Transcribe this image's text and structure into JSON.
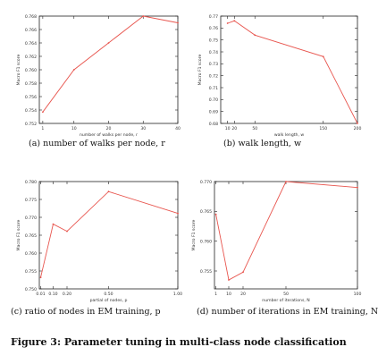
{
  "figure": {
    "caption": "Figure 3: Parameter tuning in multi-class node classification"
  },
  "colors": {
    "line": "#e8554e",
    "axis": "#222222",
    "text": "#333333"
  },
  "chart_data": [
    {
      "type": "line",
      "caption": "(a) number of walks per node, r",
      "xlabel": "number of walks per node, r",
      "ylabel": "Macro F1 score",
      "xlim": [
        0,
        40
      ],
      "ylim": [
        0.752,
        0.768
      ],
      "xticks": [
        1,
        10,
        20,
        30,
        40
      ],
      "yticks": [
        0.752,
        0.754,
        0.756,
        0.758,
        0.76,
        0.762,
        0.764,
        0.766,
        0.768
      ],
      "x": [
        1,
        10,
        20,
        30,
        40
      ],
      "values": [
        0.7537,
        0.76,
        0.764,
        0.768,
        0.767
      ]
    },
    {
      "type": "line",
      "caption": "(b) walk length, w",
      "xlabel": "walk length, w",
      "ylabel": "Macro F1 score",
      "xlim": [
        0,
        200
      ],
      "ylim": [
        0.68,
        0.77
      ],
      "xticks": [
        10,
        20,
        50,
        150,
        200
      ],
      "yticks": [
        0.68,
        0.69,
        0.7,
        0.71,
        0.72,
        0.73,
        0.74,
        0.75,
        0.76,
        0.77
      ],
      "x": [
        10,
        20,
        50,
        150,
        200
      ],
      "values": [
        0.764,
        0.766,
        0.754,
        0.736,
        0.68
      ]
    },
    {
      "type": "line",
      "caption": "(c) ratio of nodes in EM training, p",
      "xlabel": "partial of nodes, p",
      "ylabel": "Macro F1 score",
      "xlim": [
        0,
        1
      ],
      "ylim": [
        0.75,
        0.78
      ],
      "xticks": [
        0.01,
        0.1,
        0.2,
        0.5,
        1.0
      ],
      "xticklabels": [
        "0.01",
        "0.10",
        "0.20",
        "0.50",
        "1.00"
      ],
      "yticks": [
        0.75,
        0.755,
        0.76,
        0.765,
        0.77,
        0.775,
        0.78
      ],
      "x": [
        0.01,
        0.1,
        0.2,
        0.5,
        1.0
      ],
      "values": [
        0.7532,
        0.7681,
        0.7661,
        0.7772,
        0.7711
      ]
    },
    {
      "type": "line",
      "caption": "(d) number of iterations in EM training, N",
      "xlabel": "number of iterations, N",
      "ylabel": "Macro F1 score",
      "xlim": [
        0,
        100
      ],
      "ylim": [
        0.752,
        0.77
      ],
      "xticks": [
        1,
        10,
        20,
        50,
        100
      ],
      "yticks": [
        0.755,
        0.76,
        0.765,
        0.77
      ],
      "x": [
        1,
        10,
        20,
        50,
        100
      ],
      "values": [
        0.7645,
        0.7535,
        0.7548,
        0.77,
        0.769
      ]
    }
  ]
}
